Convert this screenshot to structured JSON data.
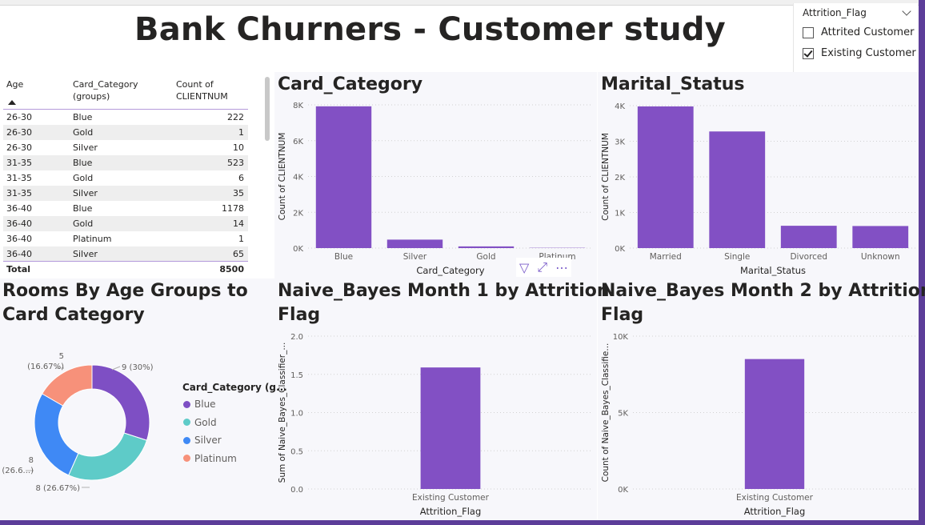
{
  "title": "Bank Churners - Customer study",
  "slicer": {
    "header": "Attrition_Flag",
    "options": [
      {
        "label": "Attrited Customer",
        "checked": false
      },
      {
        "label": "Existing Customer",
        "checked": true
      }
    ]
  },
  "table": {
    "headers": [
      "Age",
      "Card_Category\n(groups)",
      "Count of\nCLIENTNUM"
    ],
    "rows": [
      [
        "26-30",
        "Blue",
        "222"
      ],
      [
        "26-30",
        "Gold",
        "1"
      ],
      [
        "26-30",
        "Silver",
        "10"
      ],
      [
        "31-35",
        "Blue",
        "523"
      ],
      [
        "31-35",
        "Gold",
        "6"
      ],
      [
        "31-35",
        "Silver",
        "35"
      ],
      [
        "36-40",
        "Blue",
        "1178"
      ],
      [
        "36-40",
        "Gold",
        "14"
      ],
      [
        "36-40",
        "Platinum",
        "1"
      ],
      [
        "36-40",
        "Silver",
        "65"
      ]
    ],
    "total_label": "Total",
    "total_value": "8500"
  },
  "colors": {
    "bar": "#8250c4",
    "blue": "#7e4fc4",
    "gold": "#5ecbc8",
    "silver": "#3f89f5",
    "platinum": "#f7917a"
  },
  "chart_data": [
    {
      "type": "bar",
      "title": "Card_Category",
      "xlabel": "Card_Category",
      "ylabel": "Count of CLIENTNUM",
      "categories": [
        "Blue",
        "Silver",
        "Gold",
        "Platinum"
      ],
      "values": [
        7917,
        473,
        95,
        15
      ],
      "yticks": [
        "0K",
        "2K",
        "4K",
        "6K",
        "8K"
      ],
      "ylim": [
        0,
        8000
      ]
    },
    {
      "type": "bar",
      "title": "Marital_Status",
      "xlabel": "Marital_Status",
      "ylabel": "Count of CLIENTNUM",
      "categories": [
        "Married",
        "Single",
        "Divorced",
        "Unknown"
      ],
      "values": [
        3978,
        3275,
        627,
        620
      ],
      "yticks": [
        "0K",
        "1K",
        "2K",
        "3K",
        "4K"
      ],
      "ylim": [
        0,
        4000
      ]
    },
    {
      "type": "pie",
      "title": "Rooms By Age Groups to Card Category",
      "legend_title": "Card_Category (g...",
      "series": [
        {
          "name": "Blue",
          "value": 9,
          "label": "9 (30%)"
        },
        {
          "name": "Gold",
          "value": 8,
          "label": "8 (26.67%)"
        },
        {
          "name": "Silver",
          "value": 8,
          "label": "8\n(26.6...)"
        },
        {
          "name": "Platinum",
          "value": 5,
          "label": "5\n(16.67%)"
        }
      ]
    },
    {
      "type": "bar",
      "title": "Naive_Bayes Month 1 by Attrition\nFlag",
      "xlabel": "Attrition_Flag",
      "ylabel": "Sum of Naive_Bayes_Classifier_...",
      "categories": [
        "Existing Customer"
      ],
      "values": [
        1.59
      ],
      "yticks": [
        "0.0",
        "0.5",
        "1.0",
        "1.5",
        "2.0"
      ],
      "ylim": [
        0,
        2
      ]
    },
    {
      "type": "bar",
      "title": "Naive_Bayes Month 2 by Attrition\nFlag",
      "xlabel": "Attrition_Flag",
      "ylabel": "Count of Naive_Bayes_Classifie...",
      "categories": [
        "Existing Customer"
      ],
      "values": [
        8500
      ],
      "yticks": [
        "0K",
        "5K",
        "10K"
      ],
      "ylim": [
        0,
        10000
      ]
    }
  ]
}
